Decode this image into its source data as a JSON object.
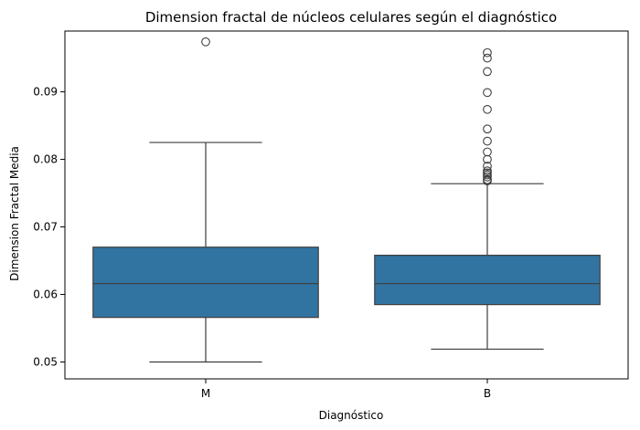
{
  "chart_data": {
    "type": "box",
    "title": "Dimension fractal de núcleos celulares según el diagnóstico",
    "xlabel": "Diagnóstico",
    "ylabel": "Dimension Fractal Media",
    "categories": [
      "M",
      "B"
    ],
    "ylim": [
      0.0475,
      0.099
    ],
    "yticks": [
      0.05,
      0.06,
      0.07,
      0.08,
      0.09
    ],
    "ytick_labels": [
      "0.05",
      "0.06",
      "0.07",
      "0.08",
      "0.09"
    ],
    "box_color": "#3274a1",
    "line_color": "#3d3d3d",
    "grid": false,
    "boxes": [
      {
        "category": "M",
        "whisker_low": 0.05,
        "q1": 0.0566,
        "median": 0.0616,
        "q3": 0.067,
        "whisker_high": 0.0825,
        "outliers": [
          0.0974
        ]
      },
      {
        "category": "B",
        "whisker_low": 0.0519,
        "q1": 0.0585,
        "median": 0.0616,
        "q3": 0.0658,
        "whisker_high": 0.0764,
        "outliers": [
          0.0958,
          0.095,
          0.093,
          0.0899,
          0.0874,
          0.0845,
          0.0827,
          0.0811,
          0.08,
          0.079,
          0.0783,
          0.078,
          0.0777,
          0.0774,
          0.077,
          0.0768
        ]
      }
    ]
  }
}
